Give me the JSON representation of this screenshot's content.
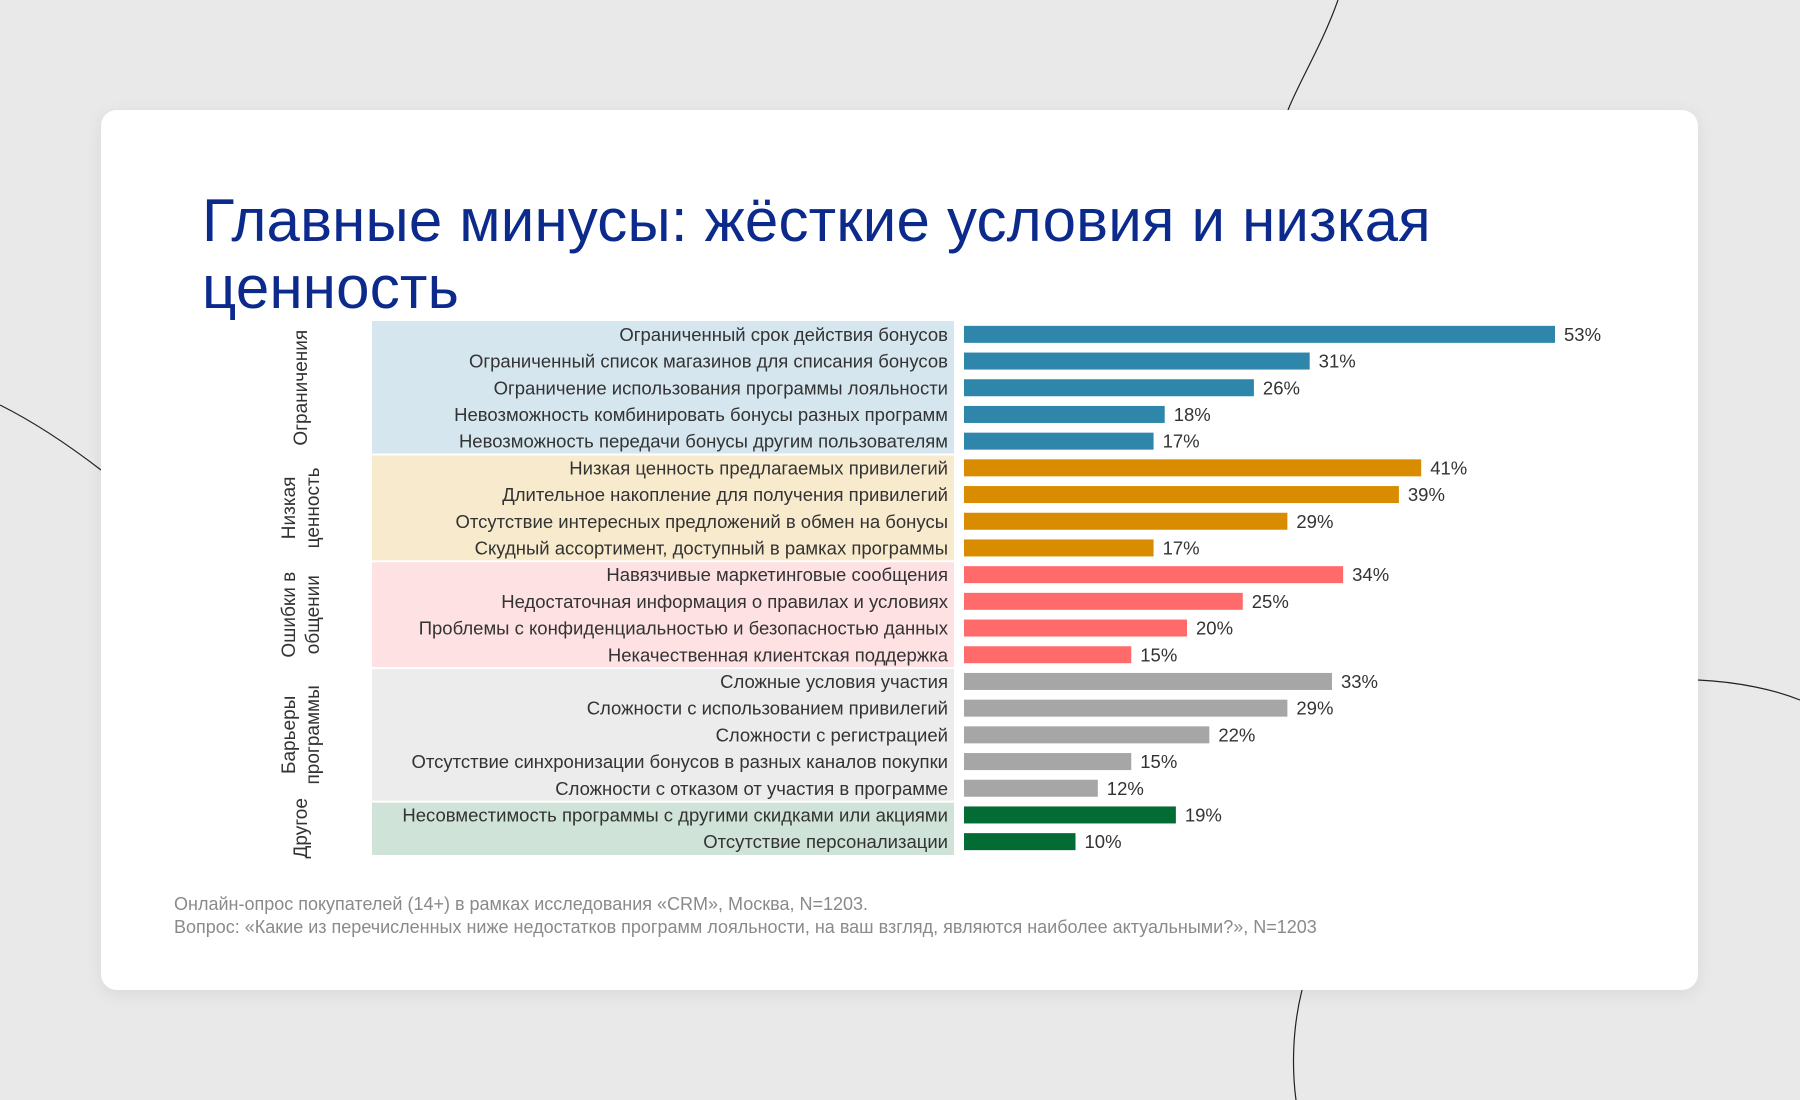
{
  "title": "Главные минусы: жёсткие условия и низкая ценность",
  "footnote": {
    "line1": "Онлайн-опрос покупателей (14+) в рамках исследования «CRM», Москва, N=1203.",
    "line2": "Вопрос: «Какие из перечисленных ниже недостатков программ лояльности, на ваш взгляд, являются наиболее актуальными?», N=1203"
  },
  "chart_data": {
    "type": "bar",
    "orientation": "horizontal",
    "unit": "%",
    "xlim": [
      0,
      53
    ],
    "groups": [
      {
        "label": [
          "Ограничения"
        ],
        "bar_color": "#2e87aa",
        "band_color": "#d5e6ef",
        "items": [
          {
            "label": "Ограниченный срок действия бонусов",
            "value": 53
          },
          {
            "label": "Ограниченный список магазинов для списания бонусов",
            "value": 31
          },
          {
            "label": "Ограничение использования программы лояльности",
            "value": 26
          },
          {
            "label": "Невозможность комбинировать бонусы разных программ",
            "value": 18
          },
          {
            "label": "Невозможность передачи бонусы другим пользователям",
            "value": 17
          }
        ]
      },
      {
        "label": [
          "Низкая",
          "ценность"
        ],
        "bar_color": "#d98c00",
        "band_color": "#f8eacd",
        "items": [
          {
            "label": "Низкая ценность предлагаемых привилегий",
            "value": 41
          },
          {
            "label": "Длительное накопление для получения привилегий",
            "value": 39
          },
          {
            "label": "Отсутствие интересных предложений в обмен на бонусы",
            "value": 29
          },
          {
            "label": "Скудный ассортимент, доступный в рамках программы",
            "value": 17
          }
        ]
      },
      {
        "label": [
          "Ошибки в",
          "общении"
        ],
        "bar_color": "#ff6b6b",
        "band_color": "#fde1e3",
        "items": [
          {
            "label": "Навязчивые маркетинговые сообщения",
            "value": 34
          },
          {
            "label": "Недостаточная информация о правилах и условиях",
            "value": 25
          },
          {
            "label": "Проблемы с конфиденциальностью и безопасностью  данных",
            "value": 20
          },
          {
            "label": "Некачественная клиентская поддержка",
            "value": 15
          }
        ]
      },
      {
        "label": [
          "Барьеры",
          "программы"
        ],
        "bar_color": "#a6a6a6",
        "band_color": "#ececec",
        "items": [
          {
            "label": "Сложные условия участия",
            "value": 33
          },
          {
            "label": "Сложности с использованием привилегий",
            "value": 29
          },
          {
            "label": "Сложности с регистрацией",
            "value": 22
          },
          {
            "label": "Отсутствие синхронизации бонусов в разных каналов покупки",
            "value": 15
          },
          {
            "label": "Сложности с отказом от участия в программе",
            "value": 12
          }
        ]
      },
      {
        "label": [
          "Другое"
        ],
        "bar_color": "#036b34",
        "band_color": "#cfe3d9",
        "items": [
          {
            "label": "Несовместимость программы с другими скидками или акциями",
            "value": 19
          },
          {
            "label": "Отсутствие персонализации",
            "value": 10
          }
        ]
      }
    ]
  }
}
